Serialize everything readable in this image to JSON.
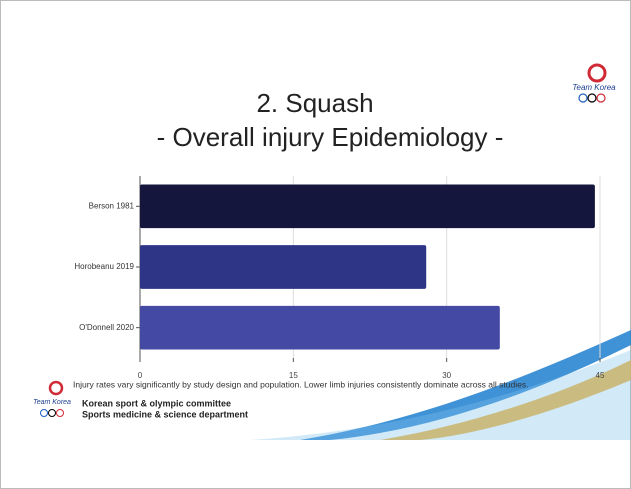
{
  "chart_data": {
    "type": "bar",
    "orientation": "horizontal",
    "title": "2. Squash",
    "subtitle": "- Overall injury Epidemiology -",
    "categories": [
      "Berson 1981",
      "Horobeanu 2019",
      "O'Donnell 2020"
    ],
    "values": [
      44.5,
      28,
      35.2
    ],
    "colors": [
      "#15163d",
      "#2f3586",
      "#4449a3"
    ],
    "xlim": [
      0,
      45
    ],
    "xticks": [
      0,
      15,
      30,
      45
    ],
    "grid": true,
    "note": "Injury rates vary significantly by study design and population. Lower limb injuries consistently dominate across all studies."
  },
  "footer": {
    "logo_text": "Team Korea",
    "lines": [
      "Korean sport & olympic committee",
      "Sports medicine & science department"
    ]
  }
}
